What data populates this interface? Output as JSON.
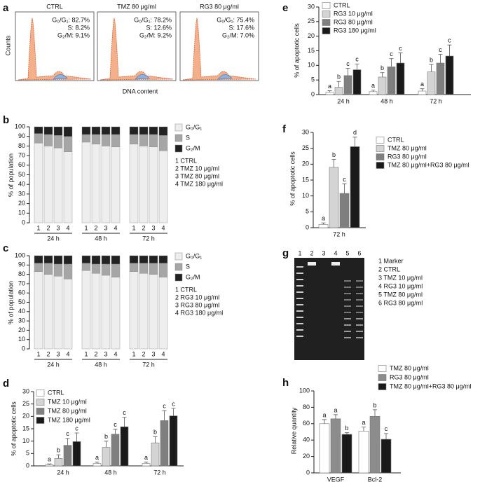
{
  "panel_a": {
    "label": "a",
    "ylabel": "Counts",
    "xlabel": "DNA content",
    "panels": [
      {
        "title": "CTRL",
        "lines": [
          "G₀/G₁: 82.7%",
          "S: 8.2%",
          "G₂/M: 9.1%"
        ]
      },
      {
        "title": "TMZ 80 μg/ml",
        "lines": [
          "G₀/G₁: 78.2%",
          "S: 12.6%",
          "G₂/M: 9.2%"
        ]
      },
      {
        "title": "RG3 80 μg/ml",
        "lines": [
          "G₀/G₁: 75.4%",
          "S: 17.6%",
          "G₂/M: 7.0%"
        ]
      }
    ]
  },
  "panel_g": {
    "label": "g",
    "lanes": [
      "1",
      "2",
      "3",
      "4",
      "5",
      "6"
    ],
    "legend": [
      "1 Marker",
      "2 CTRL",
      "3 TMZ 10 μg/ml",
      "4 RG3 10 μg/ml",
      "5 TMZ 80 μg/ml",
      "6 RG3 80 μg/ml"
    ]
  },
  "chart_data": [
    {
      "type": "stacked_bar",
      "label": "b",
      "ylabel": "% of population",
      "categories": [
        "1",
        "2",
        "3",
        "4",
        "1",
        "2",
        "3",
        "4",
        "1",
        "2",
        "3",
        "4"
      ],
      "groups": [
        "24 h",
        "48 h",
        "72 h"
      ],
      "series": [
        {
          "name": "G₀/G₁",
          "color": "#eeeeee",
          "values": [
            83,
            80,
            78,
            74,
            84,
            82,
            80,
            79,
            82,
            80,
            79,
            75
          ]
        },
        {
          "name": "S",
          "color": "#a6a6a6",
          "values": [
            10,
            12,
            13,
            16,
            8,
            10,
            12,
            13,
            10,
            12,
            13,
            16
          ]
        },
        {
          "name": "G₂/M",
          "color": "#222222",
          "values": [
            7,
            8,
            9,
            10,
            8,
            8,
            8,
            8,
            8,
            8,
            8,
            9
          ]
        }
      ],
      "key_labels": [
        "1 CTRL",
        "2 TMZ 10 μg/ml",
        "3 TMZ 80 μg/ml",
        "4 TMZ 180 μg/ml"
      ],
      "ylim": [
        0,
        100
      ],
      "yticks": [
        0,
        10,
        20,
        30,
        40,
        50,
        60,
        70,
        80,
        90,
        100
      ]
    },
    {
      "type": "stacked_bar",
      "label": "c",
      "ylabel": "% of population",
      "categories": [
        "1",
        "2",
        "3",
        "4",
        "1",
        "2",
        "3",
        "4",
        "1",
        "2",
        "3",
        "4"
      ],
      "groups": [
        "24 h",
        "48 h",
        "72 h"
      ],
      "series": [
        {
          "name": "G₀/G₁",
          "color": "#eeeeee",
          "values": [
            83,
            80,
            78,
            75,
            84,
            81,
            79,
            77,
            83,
            81,
            80,
            77
          ]
        },
        {
          "name": "S",
          "color": "#a6a6a6",
          "values": [
            9,
            12,
            13,
            16,
            8,
            10,
            12,
            14,
            9,
            11,
            12,
            15
          ]
        },
        {
          "name": "G₂/M",
          "color": "#222222",
          "values": [
            8,
            8,
            9,
            9,
            8,
            9,
            9,
            9,
            8,
            8,
            8,
            8
          ]
        }
      ],
      "key_labels": [
        "1 CTRL",
        "2 RG3 10 μg/ml",
        "3 RG3 80 μg/ml",
        "4 RG3 180 μg/ml"
      ],
      "ylim": [
        0,
        100
      ],
      "yticks": [
        0,
        10,
        20,
        30,
        40,
        50,
        60,
        70,
        80,
        90,
        100
      ]
    },
    {
      "type": "grouped_bar",
      "label": "d",
      "ylabel": "% of apoptotic cells",
      "categories": [
        "24 h",
        "48 h",
        "72 h"
      ],
      "series": [
        {
          "name": "CTRL",
          "color": "#ffffff",
          "values": [
            0.5,
            1,
            1
          ],
          "errors": [
            0.3,
            0.5,
            0.5
          ],
          "letters": [
            "a",
            "a",
            "a"
          ]
        },
        {
          "name": "TMZ 10 μg/ml",
          "color": "#d4d4d4",
          "values": [
            3,
            7.5,
            9.3
          ],
          "errors": [
            1.5,
            2.5,
            2.5
          ],
          "letters": [
            "b",
            "b",
            "b"
          ]
        },
        {
          "name": "TMZ 80 μg/ml",
          "color": "#7f7f7f",
          "values": [
            8.3,
            12.8,
            18.3
          ],
          "errors": [
            2.8,
            2,
            4
          ],
          "letters": [
            "c",
            "c",
            "c"
          ]
        },
        {
          "name": "TMZ 180 μg/ml",
          "color": "#1a1a1a",
          "values": [
            9.8,
            15.8,
            20.2
          ],
          "errors": [
            3.5,
            3.8,
            3
          ],
          "letters": [
            "c",
            "c",
            "c"
          ]
        }
      ],
      "ylim": [
        0,
        30
      ],
      "yticks": [
        0,
        5,
        10,
        15,
        20,
        25,
        30
      ]
    },
    {
      "type": "grouped_bar",
      "label": "e",
      "ylabel": "% of apoptotic cells",
      "categories": [
        "24 h",
        "48 h",
        "72 h"
      ],
      "series": [
        {
          "name": "CTRL",
          "color": "#ffffff",
          "values": [
            0.8,
            1,
            1.2
          ],
          "errors": [
            0.5,
            0.5,
            0.8
          ],
          "letters": [
            "a",
            "a",
            "a"
          ]
        },
        {
          "name": "RG3 10 μg/ml",
          "color": "#d4d4d4",
          "values": [
            2.5,
            6,
            7.8
          ],
          "errors": [
            2,
            1.5,
            2.5
          ],
          "letters": [
            "b",
            "b",
            "b"
          ]
        },
        {
          "name": "RG3 80 μg/ml",
          "color": "#7f7f7f",
          "values": [
            6.5,
            9.5,
            10.8
          ],
          "errors": [
            2.5,
            2.8,
            3
          ],
          "letters": [
            "c",
            "c",
            "c"
          ]
        },
        {
          "name": "RG3 180 μg/ml",
          "color": "#1a1a1a",
          "values": [
            8.5,
            10.8,
            13.2
          ],
          "errors": [
            2,
            3.5,
            3.8
          ],
          "letters": [
            "c",
            "c",
            "c"
          ]
        }
      ],
      "ylim": [
        0,
        30
      ],
      "yticks": [
        0,
        5,
        10,
        15,
        20,
        25,
        30
      ]
    },
    {
      "type": "grouped_bar",
      "label": "f",
      "ylabel": "% of apoptotic cells",
      "categories": [
        "72 h"
      ],
      "series": [
        {
          "name": "CTRL",
          "color": "#ffffff",
          "values": [
            1
          ],
          "errors": [
            0.5
          ],
          "letters": [
            "a"
          ]
        },
        {
          "name": "TMZ 80 μg/ml",
          "color": "#d4d4d4",
          "values": [
            19
          ],
          "errors": [
            2.5
          ],
          "letters": [
            "b"
          ]
        },
        {
          "name": "RG3 80 μg/ml",
          "color": "#7f7f7f",
          "values": [
            10.8
          ],
          "errors": [
            3
          ],
          "letters": [
            "c"
          ]
        },
        {
          "name": "TMZ 80 μg/ml+RG3 80 μg/ml",
          "color": "#1a1a1a",
          "values": [
            25.5
          ],
          "errors": [
            3
          ],
          "letters": [
            "d"
          ]
        }
      ],
      "ylim": [
        0,
        30
      ],
      "yticks": [
        0,
        5,
        10,
        15,
        20,
        25,
        30
      ]
    },
    {
      "type": "grouped_bar",
      "label": "h",
      "ylabel": "Relative quantity",
      "categories": [
        "VEGF",
        "Bcl-2"
      ],
      "series": [
        {
          "name": "TMZ 80 μg/ml",
          "color": "#ffffff",
          "values": [
            60,
            51
          ],
          "errors": [
            5,
            5
          ],
          "letters": [
            "a",
            "a"
          ]
        },
        {
          "name": "RG3 80 μg/ml",
          "color": "#8c8c8c",
          "values": [
            66,
            69
          ],
          "errors": [
            5,
            8
          ],
          "letters": [
            "a",
            "b"
          ]
        },
        {
          "name": "TMZ 80 μg/ml+RG3 80 μg/ml",
          "color": "#1a1a1a",
          "values": [
            47,
            41
          ],
          "errors": [
            2,
            7
          ],
          "letters": [
            "b",
            "c"
          ]
        }
      ],
      "ylim": [
        0,
        100
      ],
      "yticks": [
        0,
        20,
        40,
        60,
        80,
        100
      ]
    }
  ]
}
